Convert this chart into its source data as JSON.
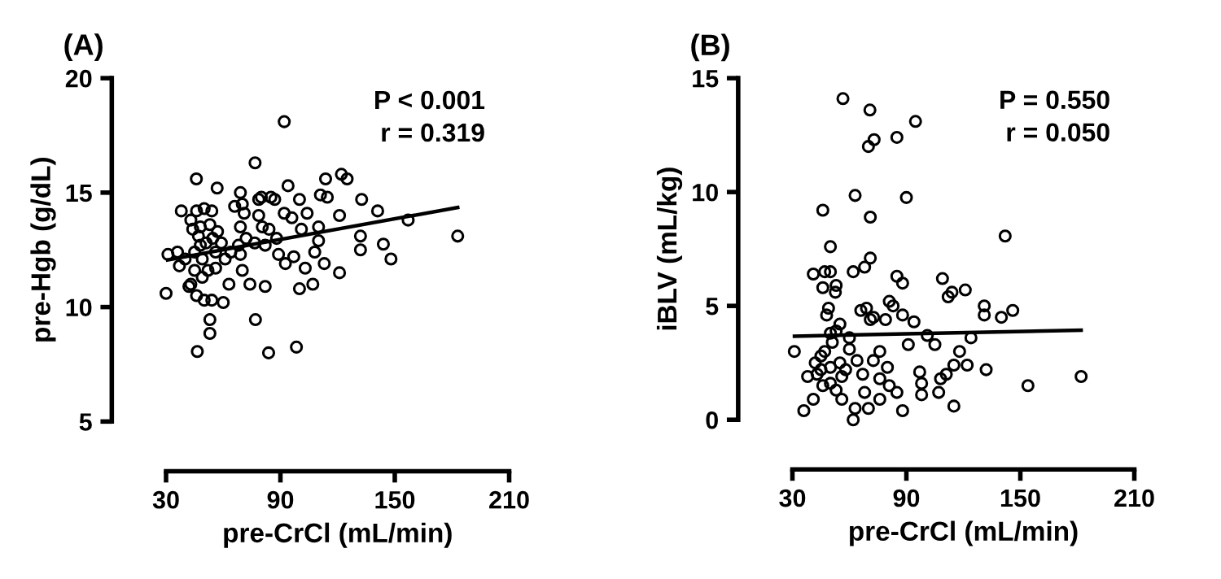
{
  "chart_data": [
    {
      "type": "scatter",
      "title": "(A)",
      "xlabel": "pre-CrCl (mL/min)",
      "ylabel": "pre-Hgb (g/dL)",
      "xlim": [
        30,
        210
      ],
      "xticks": [
        30,
        90,
        150,
        210
      ],
      "ylim": [
        5,
        20
      ],
      "yticks": [
        5,
        10,
        15,
        20
      ],
      "grid": false,
      "annotations": [
        "P < 0.001",
        "r = 0.319"
      ],
      "series": [
        {
          "marker": "circle",
          "color": "#000000",
          "x": [
            30,
            45.9,
            46.4,
            53,
            53,
            56.8,
            92,
            76.7,
            83.8,
            98.4,
            76.9,
            122,
            125,
            113.7,
            114.6,
            132.6,
            141,
            157,
            183,
            144,
            148,
            132,
            132,
            121,
            113,
            107,
            100,
            103,
            108,
            97,
            89,
            92.6,
            101,
            110,
            111,
            110,
            121,
            94,
            100,
            104,
            96,
            92,
            87,
            85,
            80,
            78.6,
            69,
            70,
            71,
            66,
            69,
            78.6,
            80.5,
            84,
            88,
            82,
            76.5,
            72,
            68,
            64,
            61,
            56,
            52,
            49,
            43,
            42,
            46,
            50,
            54,
            60,
            63,
            70,
            74,
            82,
            69,
            36,
            31,
            37,
            40,
            38,
            43,
            46,
            50,
            54,
            44,
            48,
            53,
            57,
            47,
            51,
            56,
            45,
            49,
            54.5,
            59,
            48,
            45
          ],
          "values": [
            10.6,
            15.6,
            8.06,
            9.45,
            8.85,
            15.2,
            18.1,
            16.3,
            8.0,
            8.25,
            9.45,
            15.8,
            15.6,
            15.6,
            14.8,
            14.7,
            14.2,
            13.8,
            13.1,
            12.75,
            12.1,
            12.5,
            13.1,
            11.5,
            11.9,
            11.0,
            10.8,
            11.7,
            12.4,
            12.2,
            12.3,
            11.9,
            13.4,
            13.5,
            14.9,
            12.9,
            14.0,
            15.3,
            14.7,
            14.1,
            13.9,
            14.1,
            14.7,
            14.8,
            14.8,
            14.7,
            15.0,
            14.5,
            14.1,
            14.4,
            13.5,
            14.0,
            13.5,
            13.4,
            13.0,
            12.7,
            12.8,
            13.0,
            12.7,
            12.4,
            12.1,
            11.7,
            11.6,
            11.3,
            11.0,
            10.9,
            10.5,
            10.3,
            10.3,
            10.2,
            11.0,
            11.6,
            11.0,
            10.9,
            12.3,
            12.4,
            12.3,
            11.8,
            12.1,
            14.2,
            13.8,
            14.2,
            14.3,
            14.2,
            13.4,
            13.5,
            13.6,
            13.3,
            13.1,
            12.8,
            12.4,
            12.4,
            12.1,
            13.0,
            12.8,
            12.7,
            11.6
          ]
        },
        {
          "type": "line",
          "color": "#000000",
          "x": [
            30,
            183
          ],
          "values": [
            12.05,
            14.35
          ]
        }
      ]
    },
    {
      "type": "scatter",
      "title": "(B)",
      "xlabel": "pre-CrCl (mL/min)",
      "ylabel": "iBLV (mL/kg)",
      "xlim": [
        30,
        210
      ],
      "xticks": [
        30,
        90,
        150,
        210
      ],
      "ylim": [
        0,
        15
      ],
      "yticks": [
        0,
        5,
        10,
        15
      ],
      "grid": false,
      "annotations": [
        "P = 0.550",
        "r = 0.050"
      ],
      "series": [
        {
          "marker": "circle",
          "color": "#000000",
          "x": [
            56.6,
            70.8,
            94.8,
            73,
            70,
            85,
            63,
            46,
            71,
            90,
            142,
            50,
            71,
            68,
            62,
            50,
            41,
            47,
            46,
            53,
            52.6,
            85,
            88,
            109,
            114,
            121,
            112,
            131,
            131,
            140,
            146,
            154,
            182,
            124,
            105,
            101,
            118,
            122,
            132,
            115,
            111,
            108,
            107,
            115,
            98,
            97,
            98,
            91,
            94,
            88,
            83,
            81,
            79,
            71,
            69,
            66,
            72.7,
            60,
            55,
            49,
            48,
            50,
            53,
            51,
            47,
            45,
            42,
            45,
            50,
            55,
            60,
            64,
            72.6,
            76,
            80,
            76,
            81,
            85,
            88,
            76,
            70,
            68,
            63,
            62,
            56,
            53,
            50,
            46,
            41,
            36,
            38,
            31,
            43,
            56,
            58,
            67
          ],
          "values": [
            14.1,
            13.6,
            13.1,
            12.3,
            12.0,
            12.4,
            9.85,
            9.2,
            8.9,
            9.76,
            8.07,
            7.6,
            7.1,
            6.7,
            6.5,
            6.5,
            6.4,
            6.5,
            5.8,
            5.9,
            5.6,
            6.3,
            6.0,
            6.2,
            5.6,
            5.7,
            5.4,
            5.0,
            4.6,
            4.5,
            4.8,
            1.5,
            1.9,
            3.6,
            3.3,
            3.7,
            3.0,
            2.4,
            2.2,
            2.4,
            2.0,
            1.8,
            1.2,
            0.6,
            1.1,
            2.1,
            1.6,
            3.3,
            4.3,
            4.6,
            5.0,
            5.2,
            4.4,
            4.4,
            4.9,
            4.8,
            4.5,
            3.6,
            4.2,
            4.9,
            4.6,
            3.8,
            3.9,
            3.4,
            3.0,
            2.8,
            2.5,
            2.2,
            2.3,
            2.5,
            3.1,
            2.6,
            2.6,
            3.0,
            2.3,
            1.8,
            1.5,
            1.2,
            0.4,
            0.9,
            0.5,
            1.2,
            0.5,
            0.0,
            0.9,
            1.3,
            1.6,
            1.5,
            0.9,
            0.4,
            1.9,
            3.0,
            2.0,
            1.9,
            2.2,
            2.0
          ]
        },
        {
          "type": "line",
          "color": "#000000",
          "x": [
            31,
            182
          ],
          "values": [
            3.67,
            3.93
          ]
        }
      ]
    }
  ]
}
